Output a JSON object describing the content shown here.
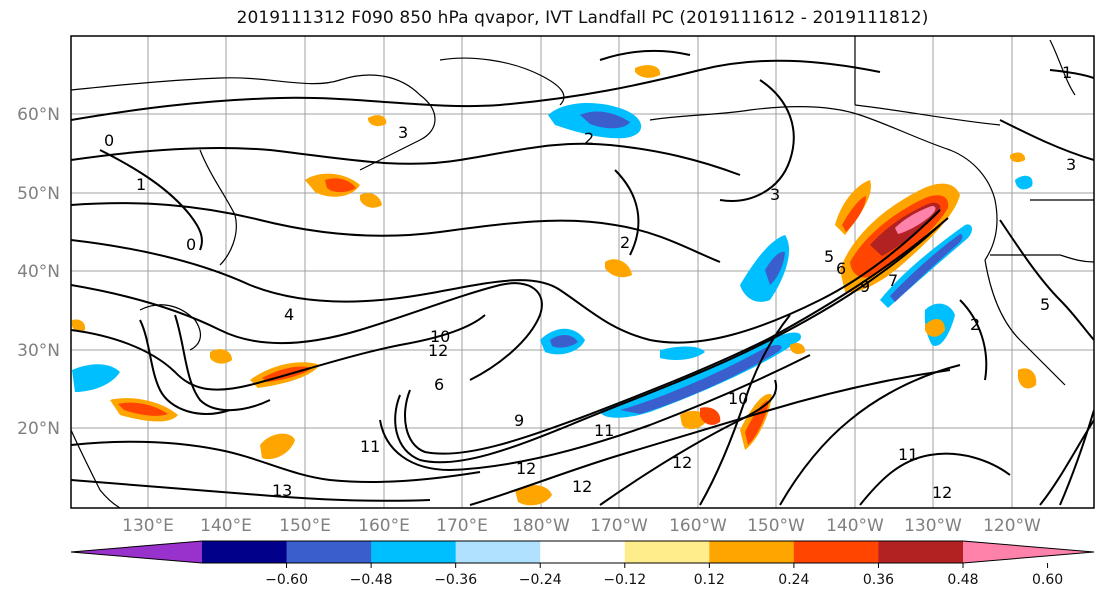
{
  "title": "2019111312 F090 850 hPa qvapor, IVT Landfall PC (2019111612 - 2019111812)",
  "axes": {
    "lat_labels": [
      "60°N",
      "50°N",
      "40°N",
      "30°N",
      "20°N"
    ],
    "lon_labels": [
      "130°E",
      "140°E",
      "150°E",
      "160°E",
      "170°E",
      "180°W",
      "170°W",
      "160°W",
      "150°W",
      "140°W",
      "130°W",
      "120°W"
    ]
  },
  "colorbar": {
    "tick_labels": [
      "−0.60",
      "−0.48",
      "−0.36",
      "−0.24",
      "−0.12",
      "0.12",
      "0.24",
      "0.36",
      "0.48",
      "0.60"
    ],
    "colors": [
      "#9932cc",
      "#00008b",
      "#3a5fcd",
      "#00bfff",
      "#b0e2ff",
      "#ffffff",
      "#ffec8b",
      "#ffa500",
      "#ff4500",
      "#b22222",
      "#ff82ab"
    ]
  },
  "contour_labels": [
    "0",
    "1",
    "0",
    "2",
    "3",
    "1",
    "2",
    "3",
    "4",
    "5",
    "6",
    "7",
    "9",
    "10",
    "12",
    "11",
    "9",
    "11",
    "12",
    "13",
    "12",
    "10",
    "11",
    "12",
    "12",
    "2",
    "3",
    "5",
    "6"
  ]
}
